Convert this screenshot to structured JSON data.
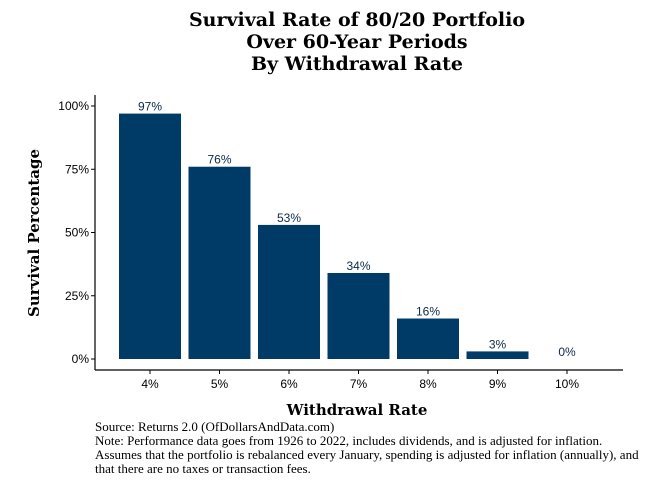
{
  "chart_data": {
    "type": "bar",
    "title": [
      "Survival Rate of 80/20 Portfolio",
      "Over 60-Year Periods",
      "By Withdrawal Rate"
    ],
    "xlabel": "Withdrawal Rate",
    "ylabel": "Survival Percentage",
    "categories": [
      "4%",
      "5%",
      "6%",
      "7%",
      "8%",
      "9%",
      "10%"
    ],
    "values": [
      97,
      76,
      53,
      34,
      16,
      3,
      0
    ],
    "value_labels": [
      "97%",
      "76%",
      "53%",
      "34%",
      "16%",
      "3%",
      "0%"
    ],
    "ylim": [
      0,
      100
    ],
    "yticks": [
      0,
      25,
      50,
      75,
      100
    ],
    "ytick_labels": [
      "0%",
      "25%",
      "50%",
      "75%",
      "100%"
    ],
    "grid": false,
    "legend": "none",
    "bar_color": "#003a66"
  },
  "source": "Source:  Returns 2.0 (OfDollarsAndData.com)",
  "note": "Note: Performance data goes from 1926 to 2022, includes dividends, and is adjusted for inflation. Assumes that the portfolio is rebalanced every January, spending is adjusted for inflation (annually), and that there are no taxes or transaction fees."
}
